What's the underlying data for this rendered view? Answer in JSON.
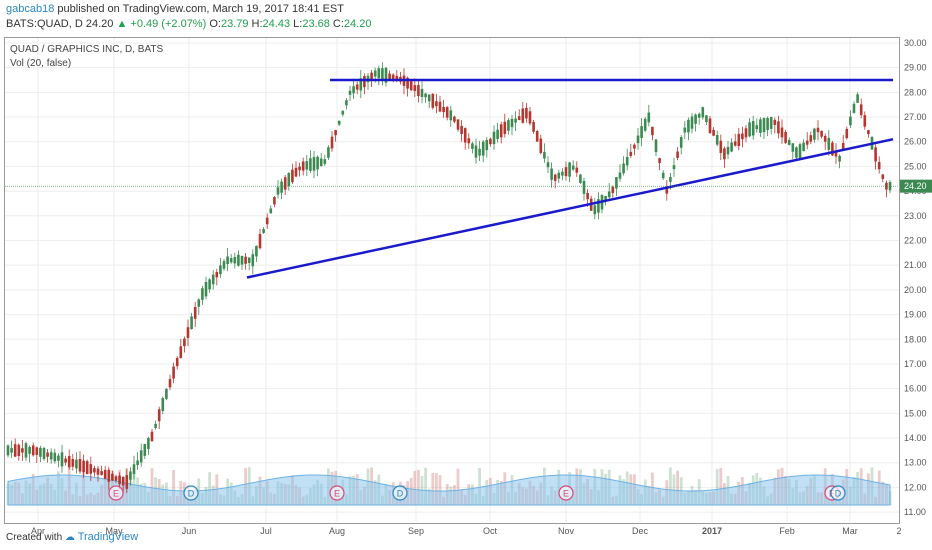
{
  "header": {
    "username": "gabcab18",
    "published_text": "published on TradingView.com, March 19, 2017 18:41 EST",
    "symbol": "BATS:QUAD, D",
    "last": "24.20",
    "change": "+0.49 (+2.07%)",
    "o_label": "O:",
    "o": "23.79",
    "h_label": "H:",
    "h": "24.43",
    "l_label": "L:",
    "l": "23.68",
    "c_label": "C:",
    "c": "24.20"
  },
  "legend": {
    "title": "QUAD / GRAPHICS INC, D, BATS",
    "volume": "Vol (20, false)"
  },
  "footer": {
    "created_with": "Created with",
    "brand": "TradingView"
  },
  "colors": {
    "up": "#3c8a52",
    "down": "#b5352f",
    "trendline": "#1a1acc",
    "volume_area": "#8ec5ec",
    "grid": "#eeeeee",
    "event_e": "#d9497a",
    "event_d": "#2d86c5"
  },
  "chart_data": {
    "type": "candlestick",
    "y_axis": {
      "ticks": [
        "30.00",
        "29.00",
        "28.00",
        "27.00",
        "26.00",
        "25.00",
        "24.00",
        "23.00",
        "22.00",
        "21.00",
        "20.00",
        "19.00",
        "18.00",
        "17.00",
        "16.00",
        "15.00",
        "14.00",
        "13.00",
        "12.00",
        "11.00"
      ],
      "ylim": [
        10.6,
        30.2
      ],
      "last_price_label": "24.20"
    },
    "x_axis": {
      "ticks": [
        "Apr",
        "May",
        "Jun",
        "Jul",
        "Aug",
        "Sep",
        "Oct",
        "Nov",
        "Dec",
        "2017",
        "Feb",
        "Mar",
        "2"
      ]
    },
    "price_series": [
      [
        "Apr",
        13.5
      ],
      [
        "Apr",
        12.8
      ],
      [
        "May",
        12.2
      ],
      [
        "May",
        14.0
      ],
      [
        "May",
        17.0
      ],
      [
        "Jun",
        19.8
      ],
      [
        "Jun",
        21.2
      ],
      [
        "Jun",
        21.2
      ],
      [
        "Jul",
        24.0
      ],
      [
        "Jul",
        25.0
      ],
      [
        "Jul",
        25.2
      ],
      [
        "Aug",
        28.0
      ],
      [
        "Aug",
        28.8
      ],
      [
        "Aug",
        28.5
      ],
      [
        "Sep",
        27.8
      ],
      [
        "Sep",
        27.0
      ],
      [
        "Sep",
        25.5
      ],
      [
        "Oct",
        26.5
      ],
      [
        "Oct",
        27.2
      ],
      [
        "Oct",
        24.5
      ],
      [
        "Nov",
        25.0
      ],
      [
        "Nov",
        23.2
      ],
      [
        "Nov",
        24.0
      ],
      [
        "Nov",
        25.5
      ],
      [
        "Dec",
        27.0
      ],
      [
        "Dec",
        24.0
      ],
      [
        "Dec",
        26.5
      ],
      [
        "Dec",
        27.2
      ],
      [
        "2017",
        25.5
      ],
      [
        "2017",
        26.5
      ],
      [
        "2017",
        26.8
      ],
      [
        "Feb",
        25.5
      ],
      [
        "Feb",
        26.5
      ],
      [
        "Feb",
        25.3
      ],
      [
        "Mar",
        27.8
      ],
      [
        "Mar",
        26.0
      ],
      [
        "Mar",
        24.2
      ]
    ],
    "trendlines": [
      {
        "name": "resistance",
        "from": [
          "Aug",
          28.5
        ],
        "to": [
          "Mar",
          28.5
        ]
      },
      {
        "name": "support",
        "from": [
          "Jun",
          20.5
        ],
        "to": [
          "Mar",
          26.1
        ]
      }
    ],
    "events": [
      {
        "label": "E",
        "at": "May"
      },
      {
        "label": "D",
        "at": "Jun"
      },
      {
        "label": "E",
        "at": "Aug"
      },
      {
        "label": "D",
        "at": "Sep"
      },
      {
        "label": "E",
        "at": "Nov"
      },
      {
        "label": "E",
        "at": "Feb"
      },
      {
        "label": "D",
        "at": "Feb"
      }
    ]
  }
}
